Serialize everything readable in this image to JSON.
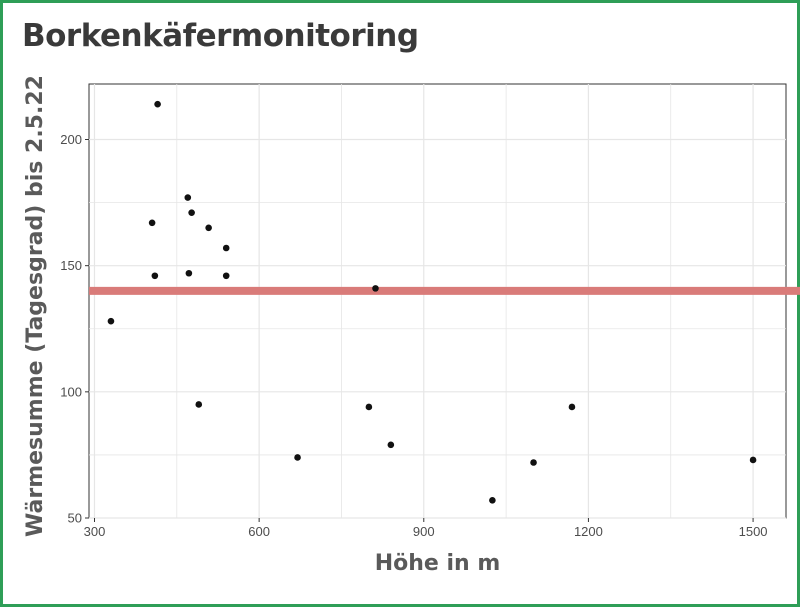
{
  "title": "Borkenkäfermonitoring",
  "chart_data": {
    "type": "scatter",
    "title": "Borkenkäfermonitoring",
    "xlabel": "Höhe in m",
    "ylabel": "Wärmesumme (Tagesgrad) bis 2.5.22",
    "xlim": [
      290,
      1560
    ],
    "ylim": [
      50,
      222
    ],
    "xticks": [
      300,
      600,
      900,
      1200,
      1500
    ],
    "yticks": [
      50,
      100,
      150,
      200
    ],
    "grid": true,
    "legend": "none",
    "points": [
      {
        "x": 330,
        "y": 128
      },
      {
        "x": 405,
        "y": 167
      },
      {
        "x": 410,
        "y": 146
      },
      {
        "x": 415,
        "y": 214
      },
      {
        "x": 470,
        "y": 177
      },
      {
        "x": 472,
        "y": 147
      },
      {
        "x": 477,
        "y": 171
      },
      {
        "x": 490,
        "y": 95
      },
      {
        "x": 508,
        "y": 165
      },
      {
        "x": 540,
        "y": 157
      },
      {
        "x": 540,
        "y": 146
      },
      {
        "x": 670,
        "y": 74
      },
      {
        "x": 800,
        "y": 94
      },
      {
        "x": 812,
        "y": 141
      },
      {
        "x": 840,
        "y": 79
      },
      {
        "x": 1025,
        "y": 57
      },
      {
        "x": 1100,
        "y": 72
      },
      {
        "x": 1170,
        "y": 94
      },
      {
        "x": 1500,
        "y": 73
      }
    ],
    "hline": {
      "y": 140,
      "color": "#d97b79"
    },
    "point_color": "#111111"
  }
}
